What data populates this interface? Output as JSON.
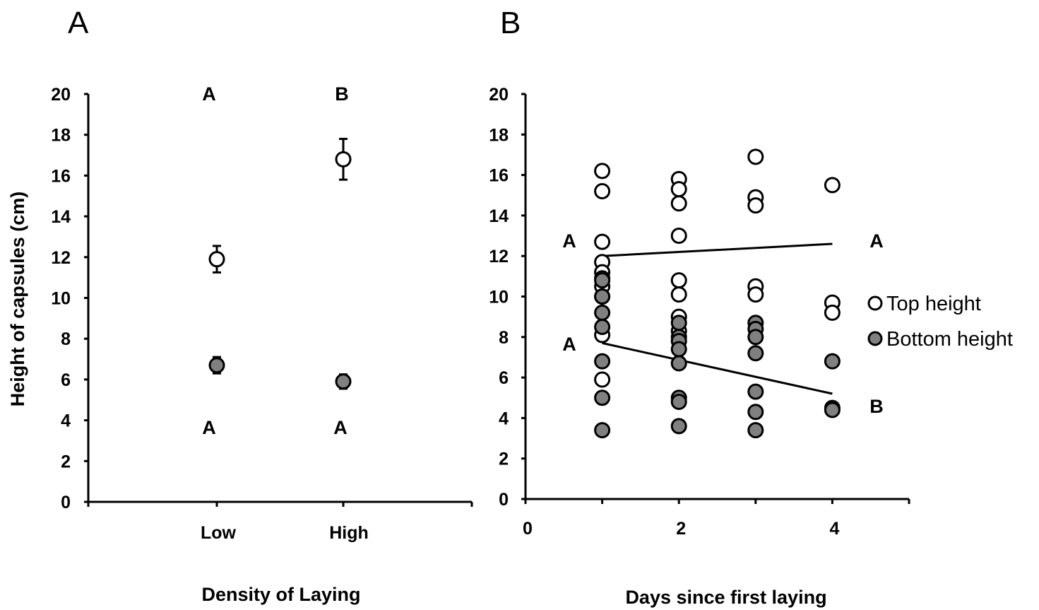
{
  "panels": {
    "a_label": "A",
    "b_label": "B"
  },
  "colors": {
    "open": "#ffffff",
    "filled": "#808080",
    "stroke": "#000000"
  },
  "chart_data": [
    {
      "type": "scatter",
      "panel": "A",
      "ylabel": "Height of capsules (cm)",
      "xlabel": "Density of Laying",
      "categories": [
        "Low",
        "High"
      ],
      "ylim": [
        0,
        20
      ],
      "yticks": [
        "0",
        "2",
        "4",
        "6",
        "8",
        "10",
        "12",
        "14",
        "16",
        "18",
        "20"
      ],
      "series": [
        {
          "name": "Top height",
          "values": [
            11.9,
            16.8
          ],
          "errors": [
            0.65,
            1.0
          ],
          "marker": "open"
        },
        {
          "name": "Bottom height",
          "values": [
            6.7,
            5.9
          ],
          "errors": [
            0.4,
            0.35
          ],
          "marker": "filled"
        }
      ],
      "letters_top": [
        "A",
        "B"
      ],
      "letters_bottom": [
        "A",
        "A"
      ]
    },
    {
      "type": "scatter",
      "panel": "B",
      "xlabel": "Days since first laying",
      "xlim": [
        0,
        5
      ],
      "xticks": [
        "0",
        "2",
        "4"
      ],
      "ylim": [
        0,
        20
      ],
      "yticks": [
        "0",
        "2",
        "4",
        "6",
        "8",
        "10",
        "12",
        "14",
        "16",
        "18",
        "20"
      ],
      "series": [
        {
          "name": "Top height",
          "marker": "open",
          "points": [
            [
              1,
              16.2
            ],
            [
              1,
              15.2
            ],
            [
              1,
              12.7
            ],
            [
              1,
              11.7
            ],
            [
              1,
              11.2
            ],
            [
              1,
              10.9
            ],
            [
              1,
              10.5
            ],
            [
              1,
              10.0
            ],
            [
              1,
              8.1
            ],
            [
              1,
              5.9
            ],
            [
              2,
              15.8
            ],
            [
              2,
              15.3
            ],
            [
              2,
              14.6
            ],
            [
              2,
              13.0
            ],
            [
              2,
              10.8
            ],
            [
              2,
              10.1
            ],
            [
              2,
              9.0
            ],
            [
              2,
              8.3
            ],
            [
              3,
              16.9
            ],
            [
              3,
              14.9
            ],
            [
              3,
              14.5
            ],
            [
              3,
              10.5
            ],
            [
              3,
              10.1
            ],
            [
              4,
              15.5
            ],
            [
              4,
              9.7
            ],
            [
              4,
              9.2
            ]
          ]
        },
        {
          "name": "Bottom height",
          "marker": "filled",
          "points": [
            [
              1,
              10.8
            ],
            [
              1,
              10.0
            ],
            [
              1,
              9.2
            ],
            [
              1,
              8.5
            ],
            [
              1,
              6.8
            ],
            [
              1,
              5.0
            ],
            [
              1,
              3.4
            ],
            [
              2,
              8.7
            ],
            [
              2,
              8.0
            ],
            [
              2,
              7.8
            ],
            [
              2,
              7.4
            ],
            [
              2,
              6.7
            ],
            [
              2,
              5.0
            ],
            [
              2,
              4.8
            ],
            [
              2,
              3.6
            ],
            [
              3,
              8.7
            ],
            [
              3,
              8.4
            ],
            [
              3,
              8.0
            ],
            [
              3,
              7.2
            ],
            [
              3,
              5.3
            ],
            [
              3,
              4.3
            ],
            [
              3,
              3.4
            ],
            [
              4,
              6.8
            ],
            [
              4,
              4.5
            ],
            [
              4,
              4.4
            ]
          ]
        }
      ],
      "trend_lines": [
        {
          "series": "Top height",
          "from": [
            1,
            12.0
          ],
          "to": [
            4,
            12.6
          ]
        },
        {
          "series": "Bottom height",
          "from": [
            1,
            7.7
          ],
          "to": [
            4,
            5.2
          ]
        }
      ],
      "letters_left": [
        "A",
        "A"
      ],
      "letters_right": [
        "A",
        "B"
      ],
      "legend": [
        "Top height",
        "Bottom height"
      ],
      "legend_position": "right"
    }
  ]
}
